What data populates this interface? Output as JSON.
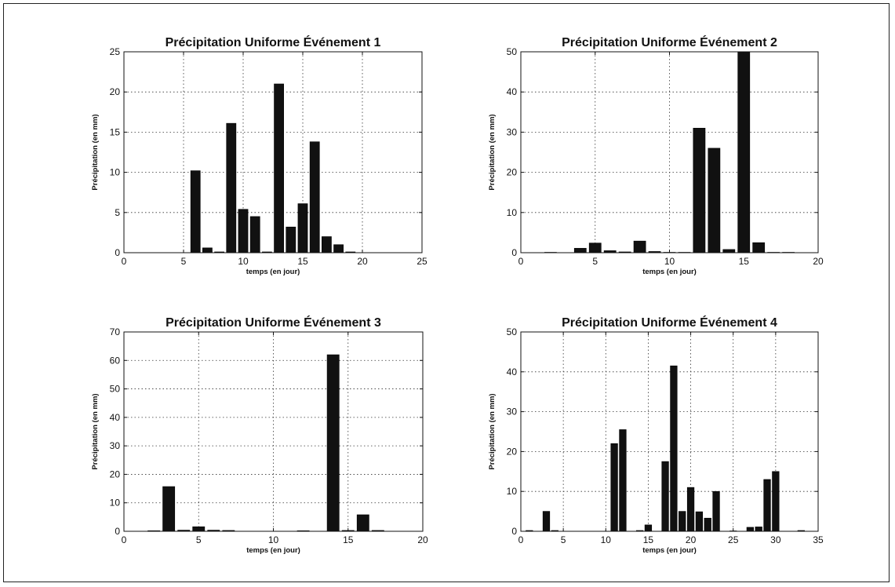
{
  "chart_data": [
    {
      "type": "bar",
      "title": "Précipitation Uniforme Événement 1",
      "xlabel": "temps (en jour)",
      "ylabel": "Précipitation (en mm)",
      "xlim": [
        0,
        25
      ],
      "ylim": [
        0,
        25
      ],
      "xticks": [
        0,
        5,
        10,
        15,
        20,
        25
      ],
      "yticks": [
        0,
        5,
        10,
        15,
        20,
        25
      ],
      "grid": true,
      "bar_color": "#111111",
      "x": [
        1,
        2,
        3,
        4,
        5,
        6,
        7,
        8,
        9,
        10,
        11,
        12,
        13,
        14,
        15,
        16,
        17,
        18,
        19,
        20,
        21,
        22,
        23,
        24
      ],
      "values": [
        0,
        0,
        0,
        0,
        0,
        10.2,
        0.6,
        0.1,
        16.1,
        5.4,
        4.5,
        0.1,
        21,
        3.2,
        6.1,
        13.8,
        2,
        1,
        0.1,
        0,
        0,
        0,
        0,
        0
      ]
    },
    {
      "type": "bar",
      "title": "Précipitation Uniforme Événement 2",
      "xlabel": "temps (en jour)",
      "ylabel": "Précipitation (en mm)",
      "xlim": [
        0,
        20
      ],
      "ylim": [
        0,
        50
      ],
      "xticks": [
        0,
        5,
        10,
        15,
        20
      ],
      "yticks": [
        0,
        10,
        20,
        30,
        40,
        50
      ],
      "grid": true,
      "bar_color": "#111111",
      "x": [
        1,
        2,
        3,
        4,
        5,
        6,
        7,
        8,
        9,
        10,
        11,
        12,
        13,
        14,
        15,
        16,
        17,
        18,
        19
      ],
      "values": [
        0,
        0.1,
        0,
        1.1,
        2.4,
        0.5,
        0.2,
        2.9,
        0.3,
        0.1,
        0.1,
        31,
        26,
        0.8,
        50,
        2.5,
        0.1,
        0.1,
        0
      ]
    },
    {
      "type": "bar",
      "title": "Précipitation Uniforme Événement 3",
      "xlabel": "temps (en jour)",
      "ylabel": "Précipitation (en mm)",
      "xlim": [
        0,
        20
      ],
      "ylim": [
        0,
        70
      ],
      "xticks": [
        0,
        5,
        10,
        15,
        20
      ],
      "yticks": [
        0,
        10,
        20,
        30,
        40,
        50,
        60,
        70
      ],
      "grid": true,
      "bar_color": "#111111",
      "x": [
        1,
        2,
        3,
        4,
        5,
        6,
        7,
        8,
        9,
        10,
        11,
        12,
        13,
        14,
        15,
        16,
        17,
        18,
        19
      ],
      "values": [
        0,
        0.2,
        15.7,
        0.4,
        1.6,
        0.4,
        0.3,
        0,
        0,
        0,
        0,
        0.2,
        0,
        62,
        0.3,
        5.8,
        0.3,
        0,
        0
      ]
    },
    {
      "type": "bar",
      "title": "Précipitation Uniforme Événement 4",
      "xlabel": "temps (en jour)",
      "ylabel": "Précipitation (en mm)",
      "xlim": [
        0,
        35
      ],
      "ylim": [
        0,
        50
      ],
      "xticks": [
        0,
        5,
        10,
        15,
        20,
        25,
        30,
        35
      ],
      "yticks": [
        0,
        10,
        20,
        30,
        40,
        50
      ],
      "grid": true,
      "bar_color": "#111111",
      "x": [
        1,
        2,
        3,
        4,
        5,
        6,
        7,
        8,
        9,
        10,
        11,
        12,
        13,
        14,
        15,
        16,
        17,
        18,
        19,
        20,
        21,
        22,
        23,
        24,
        25,
        26,
        27,
        28,
        29,
        30,
        31,
        32,
        33,
        34
      ],
      "values": [
        0.2,
        0,
        5,
        0.2,
        0,
        0,
        0,
        0,
        0,
        0,
        22,
        25.5,
        0,
        0.2,
        1.6,
        0,
        17.5,
        41.5,
        5,
        11,
        4.9,
        3.3,
        10,
        0,
        0.1,
        0,
        1,
        1.1,
        13,
        15,
        0,
        0,
        0.2,
        0
      ]
    }
  ]
}
